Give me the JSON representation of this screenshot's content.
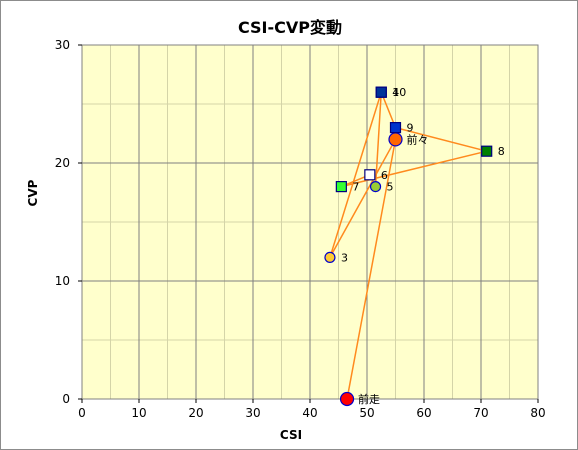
{
  "chart_data": {
    "type": "scatter",
    "title": "CSI-CVP変動",
    "xlabel": "CSI",
    "ylabel": "CVP",
    "xlim": [
      0,
      80
    ],
    "ylim": [
      0,
      30
    ],
    "x_ticks": [
      0,
      10,
      20,
      30,
      40,
      50,
      60,
      70,
      80
    ],
    "y_ticks": [
      0,
      10,
      20,
      30
    ],
    "grid": true,
    "plot_background": "#ffffcc",
    "line_color": "#ff8a1e",
    "path_order": [
      "前走",
      "前々",
      "3",
      "4",
      "5",
      "6",
      "7",
      "8",
      "9",
      "10"
    ],
    "points": [
      {
        "label": "前走",
        "x": 46.5,
        "y": 0,
        "shape": "circle",
        "fill": "#ff0000"
      },
      {
        "label": "前々",
        "x": 55,
        "y": 22,
        "shape": "circle",
        "fill": "#ff6600"
      },
      {
        "label": "3",
        "x": 43.5,
        "y": 12,
        "shape": "circle",
        "fill": "#ffcc33"
      },
      {
        "label": "4",
        "x": 52.5,
        "y": 26,
        "shape": "square",
        "fill": "#33cccc"
      },
      {
        "label": "5",
        "x": 51.5,
        "y": 18,
        "shape": "circle",
        "fill": "#99cc33"
      },
      {
        "label": "6",
        "x": 50.5,
        "y": 19,
        "shape": "square",
        "fill": "#ffffff"
      },
      {
        "label": "7",
        "x": 45.5,
        "y": 18,
        "shape": "square",
        "fill": "#33ff33"
      },
      {
        "label": "8",
        "x": 71,
        "y": 21,
        "shape": "square",
        "fill": "#008000"
      },
      {
        "label": "9",
        "x": 55,
        "y": 23,
        "shape": "square",
        "fill": "#0033cc"
      },
      {
        "label": "10",
        "x": 52.5,
        "y": 26,
        "shape": "square",
        "fill": "#003399"
      }
    ]
  }
}
